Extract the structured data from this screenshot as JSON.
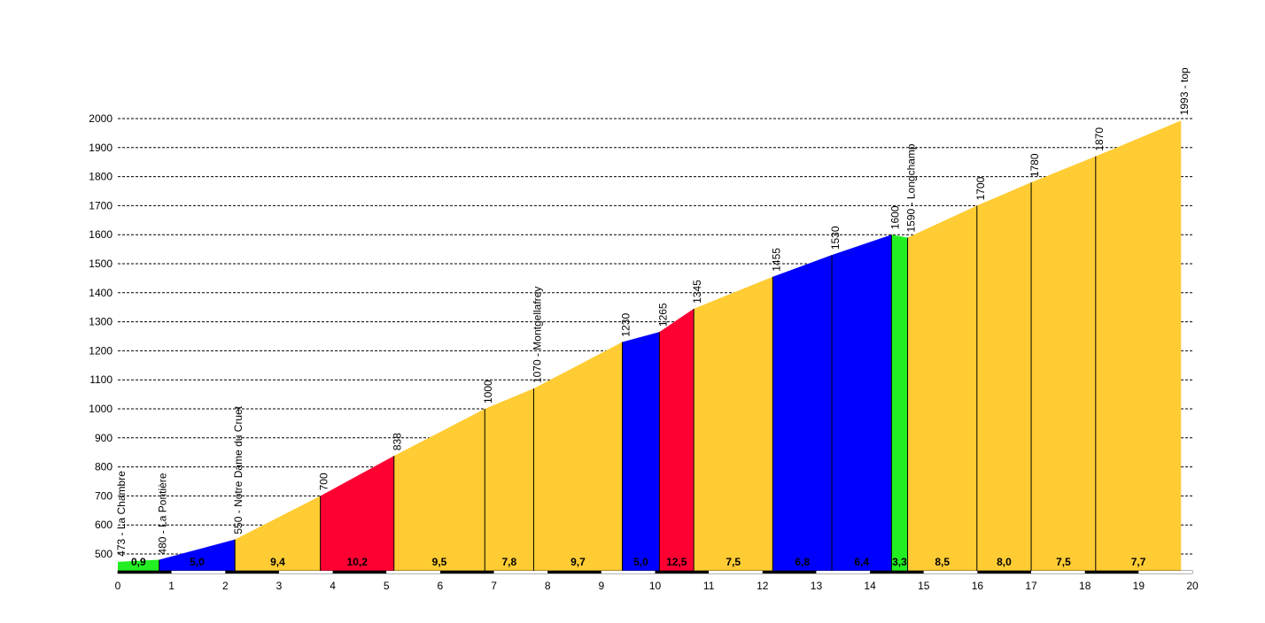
{
  "chart_data": {
    "type": "area",
    "title": "",
    "xlabel": "",
    "ylabel": "",
    "xlim": [
      0,
      20
    ],
    "ylim": [
      440,
      2000
    ],
    "grid": true,
    "y_ticks": [
      500,
      600,
      700,
      800,
      900,
      1000,
      1100,
      1200,
      1300,
      1400,
      1500,
      1600,
      1700,
      1800,
      1900,
      2000
    ],
    "x_ticks": [
      0,
      1,
      2,
      3,
      4,
      5,
      6,
      7,
      8,
      9,
      10,
      11,
      12,
      13,
      14,
      15,
      16,
      17,
      18,
      19,
      20
    ],
    "segment_colors": {
      "green": "#22ee22",
      "blue": "#0000ff",
      "red": "#ff0033",
      "yellow": "#ffcc33"
    },
    "segments": [
      {
        "x0": 0.0,
        "x1": 0.77,
        "y0": 473,
        "y1": 480,
        "color": "green",
        "grade": "0,9"
      },
      {
        "x0": 0.77,
        "x1": 2.18,
        "y0": 480,
        "y1": 550,
        "color": "blue",
        "grade": "5,0"
      },
      {
        "x0": 2.18,
        "x1": 3.77,
        "y0": 550,
        "y1": 700,
        "color": "yellow",
        "grade": "9,4"
      },
      {
        "x0": 3.77,
        "x1": 5.14,
        "y0": 700,
        "y1": 838,
        "color": "red",
        "grade": "10,2"
      },
      {
        "x0": 5.14,
        "x1": 6.83,
        "y0": 838,
        "y1": 1000,
        "color": "yellow",
        "grade": "9,5"
      },
      {
        "x0": 6.83,
        "x1": 7.74,
        "y0": 1000,
        "y1": 1070,
        "color": "yellow",
        "grade": "7,8"
      },
      {
        "x0": 7.74,
        "x1": 9.39,
        "y0": 1070,
        "y1": 1230,
        "color": "yellow",
        "grade": "9,7"
      },
      {
        "x0": 9.39,
        "x1": 10.08,
        "y0": 1230,
        "y1": 1265,
        "color": "blue",
        "grade": "5,0"
      },
      {
        "x0": 10.08,
        "x1": 10.72,
        "y0": 1265,
        "y1": 1345,
        "color": "red",
        "grade": "12,5"
      },
      {
        "x0": 10.72,
        "x1": 12.19,
        "y0": 1345,
        "y1": 1455,
        "color": "yellow",
        "grade": "7,5"
      },
      {
        "x0": 12.19,
        "x1": 13.29,
        "y0": 1455,
        "y1": 1530,
        "color": "blue",
        "grade": "6,8"
      },
      {
        "x0": 13.29,
        "x1": 14.4,
        "y0": 1530,
        "y1": 1600,
        "color": "blue",
        "grade": "6,4"
      },
      {
        "x0": 14.4,
        "x1": 14.7,
        "y0": 1600,
        "y1": 1590,
        "color": "green",
        "grade": "3,3"
      },
      {
        "x0": 14.7,
        "x1": 15.99,
        "y0": 1590,
        "y1": 1700,
        "color": "yellow",
        "grade": "8,5"
      },
      {
        "x0": 15.99,
        "x1": 17.0,
        "y0": 1700,
        "y1": 1780,
        "color": "yellow",
        "grade": "8,0"
      },
      {
        "x0": 17.0,
        "x1": 18.2,
        "y0": 1780,
        "y1": 1870,
        "color": "yellow",
        "grade": "7,5"
      },
      {
        "x0": 18.2,
        "x1": 19.79,
        "y0": 1870,
        "y1": 1993,
        "color": "yellow",
        "grade": "7,7"
      }
    ],
    "annotations": [
      {
        "x": 0.0,
        "y": 473,
        "label": "473 - La Chambre"
      },
      {
        "x": 0.77,
        "y": 480,
        "label": "480 - La Pontière"
      },
      {
        "x": 2.18,
        "y": 550,
        "label": "550 - Notre Dame du Cruet"
      },
      {
        "x": 3.77,
        "y": 700,
        "label": "700"
      },
      {
        "x": 5.14,
        "y": 838,
        "label": "838"
      },
      {
        "x": 6.83,
        "y": 1000,
        "label": "1000"
      },
      {
        "x": 7.74,
        "y": 1070,
        "label": "1070 - Montgellafrey"
      },
      {
        "x": 9.39,
        "y": 1230,
        "label": "1230"
      },
      {
        "x": 10.08,
        "y": 1265,
        "label": "1265"
      },
      {
        "x": 10.72,
        "y": 1345,
        "label": "1345"
      },
      {
        "x": 12.19,
        "y": 1455,
        "label": "1455"
      },
      {
        "x": 13.29,
        "y": 1530,
        "label": "1530"
      },
      {
        "x": 14.4,
        "y": 1600,
        "label": "1600"
      },
      {
        "x": 14.7,
        "y": 1590,
        "label": "1590 - Longchamp"
      },
      {
        "x": 15.99,
        "y": 1700,
        "label": "1700"
      },
      {
        "x": 17.0,
        "y": 1780,
        "label": "1780"
      },
      {
        "x": 18.2,
        "y": 1870,
        "label": "1870"
      },
      {
        "x": 19.79,
        "y": 1993,
        "label": "1993 - top"
      }
    ]
  }
}
